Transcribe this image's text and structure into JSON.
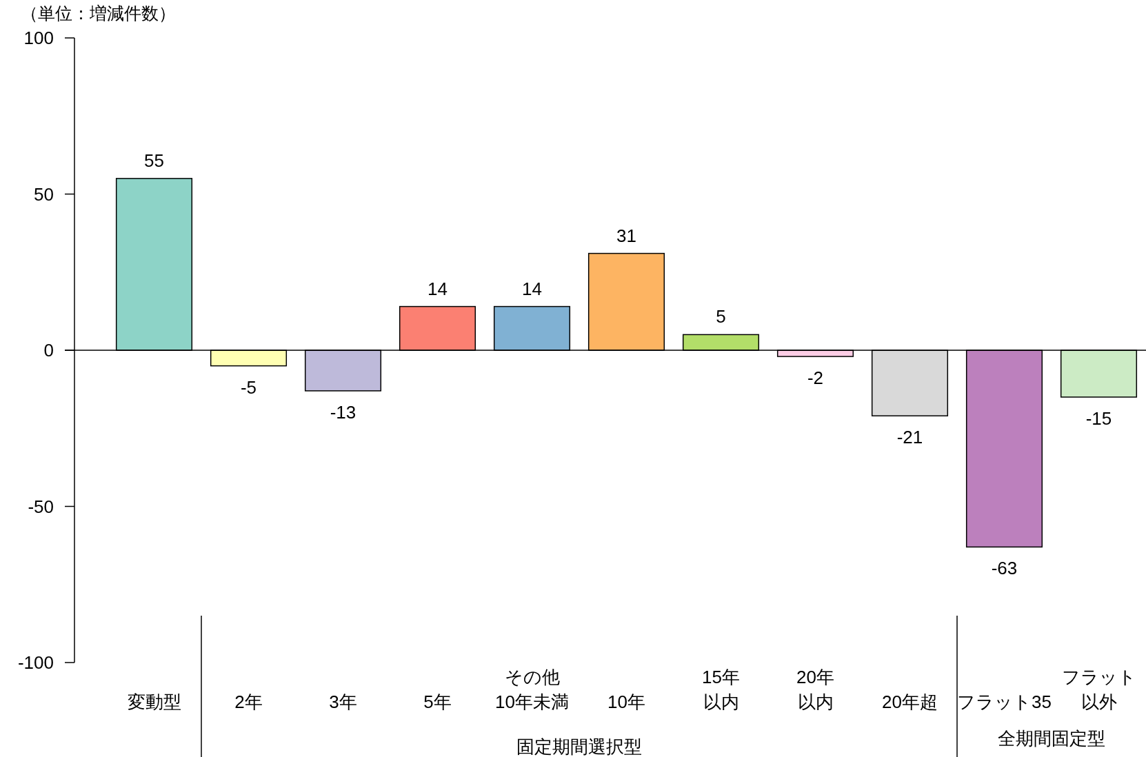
{
  "chart_data": {
    "type": "bar",
    "ylabel": "（単位：増減件数）",
    "categories": [
      "変動型",
      "2年",
      "3年",
      "5年",
      "その他10年未満",
      "10年",
      "15年以内",
      "20年以内",
      "20年超",
      "フラット35",
      "フラット以外"
    ],
    "values": [
      55,
      -5,
      -13,
      14,
      14,
      31,
      5,
      -2,
      -21,
      -63,
      -15
    ],
    "colors": [
      "#8dd3c7",
      "#ffffb3",
      "#bebada",
      "#fb8072",
      "#80b1d3",
      "#fdb462",
      "#b3de69",
      "#fccde5",
      "#d9d9d9",
      "#bc80bd",
      "#ccebc5"
    ],
    "ylim": [
      -100,
      100
    ],
    "yticks": [
      -100,
      -50,
      0,
      50,
      100
    ],
    "data_labels": true,
    "annotations": [
      "固定期間選択型",
      "全期間固定型"
    ]
  }
}
